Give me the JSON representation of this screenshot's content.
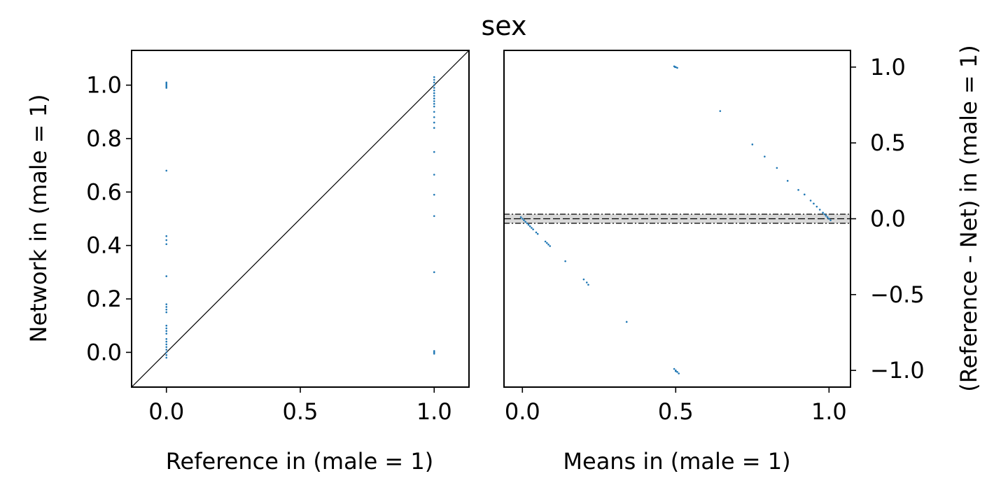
{
  "chart_data": [
    {
      "type": "scatter",
      "title": "sex",
      "xlabel": "Reference in (male = 1)",
      "ylabel": "Network in (male = 1)",
      "xlim": [
        -0.13,
        1.13
      ],
      "ylim": [
        -0.13,
        1.13
      ],
      "xticks": [
        "0.0",
        "0.5",
        "1.0"
      ],
      "yticks": [
        "0.0",
        "0.2",
        "0.4",
        "0.6",
        "0.8",
        "1.0"
      ],
      "identity_line": true,
      "point_color": "#1f77b4",
      "line_color": "#000000",
      "points": [
        {
          "x": 0,
          "y": 1.0
        },
        {
          "x": 0,
          "y": 1.005
        },
        {
          "x": 0,
          "y": 0.995
        },
        {
          "x": 0,
          "y": 1.01
        },
        {
          "x": 0,
          "y": 0.99
        },
        {
          "x": 0,
          "y": 0.68
        },
        {
          "x": 0,
          "y": 0.435
        },
        {
          "x": 0,
          "y": 0.42
        },
        {
          "x": 0,
          "y": 0.405
        },
        {
          "x": 0,
          "y": 0.285
        },
        {
          "x": 0,
          "y": 0.18
        },
        {
          "x": 0,
          "y": 0.17
        },
        {
          "x": 0,
          "y": 0.16
        },
        {
          "x": 0,
          "y": 0.15
        },
        {
          "x": 0,
          "y": 0.1
        },
        {
          "x": 0,
          "y": 0.09
        },
        {
          "x": 0,
          "y": 0.08
        },
        {
          "x": 0,
          "y": 0.07
        },
        {
          "x": 0,
          "y": 0.05
        },
        {
          "x": 0,
          "y": 0.04
        },
        {
          "x": 0,
          "y": 0.03
        },
        {
          "x": 0,
          "y": 0.02
        },
        {
          "x": 0,
          "y": 0.01
        },
        {
          "x": 0,
          "y": 0.0
        },
        {
          "x": 0,
          "y": -0.01
        },
        {
          "x": 0,
          "y": -0.02
        },
        {
          "x": 1,
          "y": 1.03
        },
        {
          "x": 1,
          "y": 1.02
        },
        {
          "x": 1,
          "y": 1.01
        },
        {
          "x": 1,
          "y": 1.0
        },
        {
          "x": 1,
          "y": 0.99
        },
        {
          "x": 1,
          "y": 0.98
        },
        {
          "x": 1,
          "y": 0.97
        },
        {
          "x": 1,
          "y": 0.96
        },
        {
          "x": 1,
          "y": 0.95
        },
        {
          "x": 1,
          "y": 0.94
        },
        {
          "x": 1,
          "y": 0.93
        },
        {
          "x": 1,
          "y": 0.92
        },
        {
          "x": 1,
          "y": 0.9
        },
        {
          "x": 1,
          "y": 0.88
        },
        {
          "x": 1,
          "y": 0.86
        },
        {
          "x": 1,
          "y": 0.84
        },
        {
          "x": 1,
          "y": 0.75
        },
        {
          "x": 1,
          "y": 0.665
        },
        {
          "x": 1,
          "y": 0.59
        },
        {
          "x": 1,
          "y": 0.51
        },
        {
          "x": 1,
          "y": 0.3
        },
        {
          "x": 1,
          "y": 0.0
        },
        {
          "x": 1,
          "y": -0.005
        },
        {
          "x": 1,
          "y": 0.005
        }
      ]
    },
    {
      "type": "scatter",
      "xlabel": "Means in (male = 1)",
      "ylabel": "(Reference - Net) in (male = 1)",
      "xlim": [
        -0.06,
        1.07
      ],
      "ylim": [
        -1.11,
        1.11
      ],
      "xticks": [
        "0.0",
        "0.5",
        "1.0"
      ],
      "yticks": [
        "−1.0",
        "−0.5",
        "0.0",
        "0.5",
        "1.0"
      ],
      "mean_line": 0.0,
      "limits_of_agreement": [
        -0.03,
        0.03
      ],
      "band_color": "#d9d9d9",
      "point_color": "#1f77b4",
      "points": [
        {
          "x": 0.5,
          "y": 1.0
        },
        {
          "x": 0.505,
          "y": 0.995
        },
        {
          "x": 0.495,
          "y": 1.005
        },
        {
          "x": 0.498,
          "y": 1.0
        },
        {
          "x": 0.645,
          "y": 0.71
        },
        {
          "x": 0.75,
          "y": 0.49
        },
        {
          "x": 0.79,
          "y": 0.41
        },
        {
          "x": 0.83,
          "y": 0.335
        },
        {
          "x": 0.865,
          "y": 0.25
        },
        {
          "x": 0.9,
          "y": 0.19
        },
        {
          "x": 0.92,
          "y": 0.16
        },
        {
          "x": 0.94,
          "y": 0.12
        },
        {
          "x": 0.95,
          "y": 0.1
        },
        {
          "x": 0.96,
          "y": 0.08
        },
        {
          "x": 0.97,
          "y": 0.06
        },
        {
          "x": 0.98,
          "y": 0.04
        },
        {
          "x": 0.985,
          "y": 0.03
        },
        {
          "x": 0.99,
          "y": 0.02
        },
        {
          "x": 0.995,
          "y": 0.01
        },
        {
          "x": 1.0,
          "y": 0.0
        },
        {
          "x": 1.005,
          "y": -0.01
        },
        {
          "x": -0.005,
          "y": 0.01
        },
        {
          "x": 0.0,
          "y": 0.0
        },
        {
          "x": 0.005,
          "y": -0.01
        },
        {
          "x": 0.01,
          "y": -0.02
        },
        {
          "x": 0.015,
          "y": -0.03
        },
        {
          "x": 0.02,
          "y": -0.04
        },
        {
          "x": 0.025,
          "y": -0.05
        },
        {
          "x": 0.03,
          "y": -0.06
        },
        {
          "x": 0.035,
          "y": -0.07
        },
        {
          "x": 0.045,
          "y": -0.09
        },
        {
          "x": 0.05,
          "y": -0.1
        },
        {
          "x": 0.075,
          "y": -0.15
        },
        {
          "x": 0.08,
          "y": -0.16
        },
        {
          "x": 0.085,
          "y": -0.17
        },
        {
          "x": 0.09,
          "y": -0.18
        },
        {
          "x": 0.14,
          "y": -0.28
        },
        {
          "x": 0.2,
          "y": -0.4
        },
        {
          "x": 0.21,
          "y": -0.42
        },
        {
          "x": 0.215,
          "y": -0.435
        },
        {
          "x": 0.34,
          "y": -0.68
        },
        {
          "x": 0.5,
          "y": -1.0
        },
        {
          "x": 0.505,
          "y": -1.01
        },
        {
          "x": 0.495,
          "y": -0.99
        },
        {
          "x": 0.51,
          "y": -1.02
        },
        {
          "x": 0.5,
          "y": -1.005
        }
      ]
    }
  ]
}
